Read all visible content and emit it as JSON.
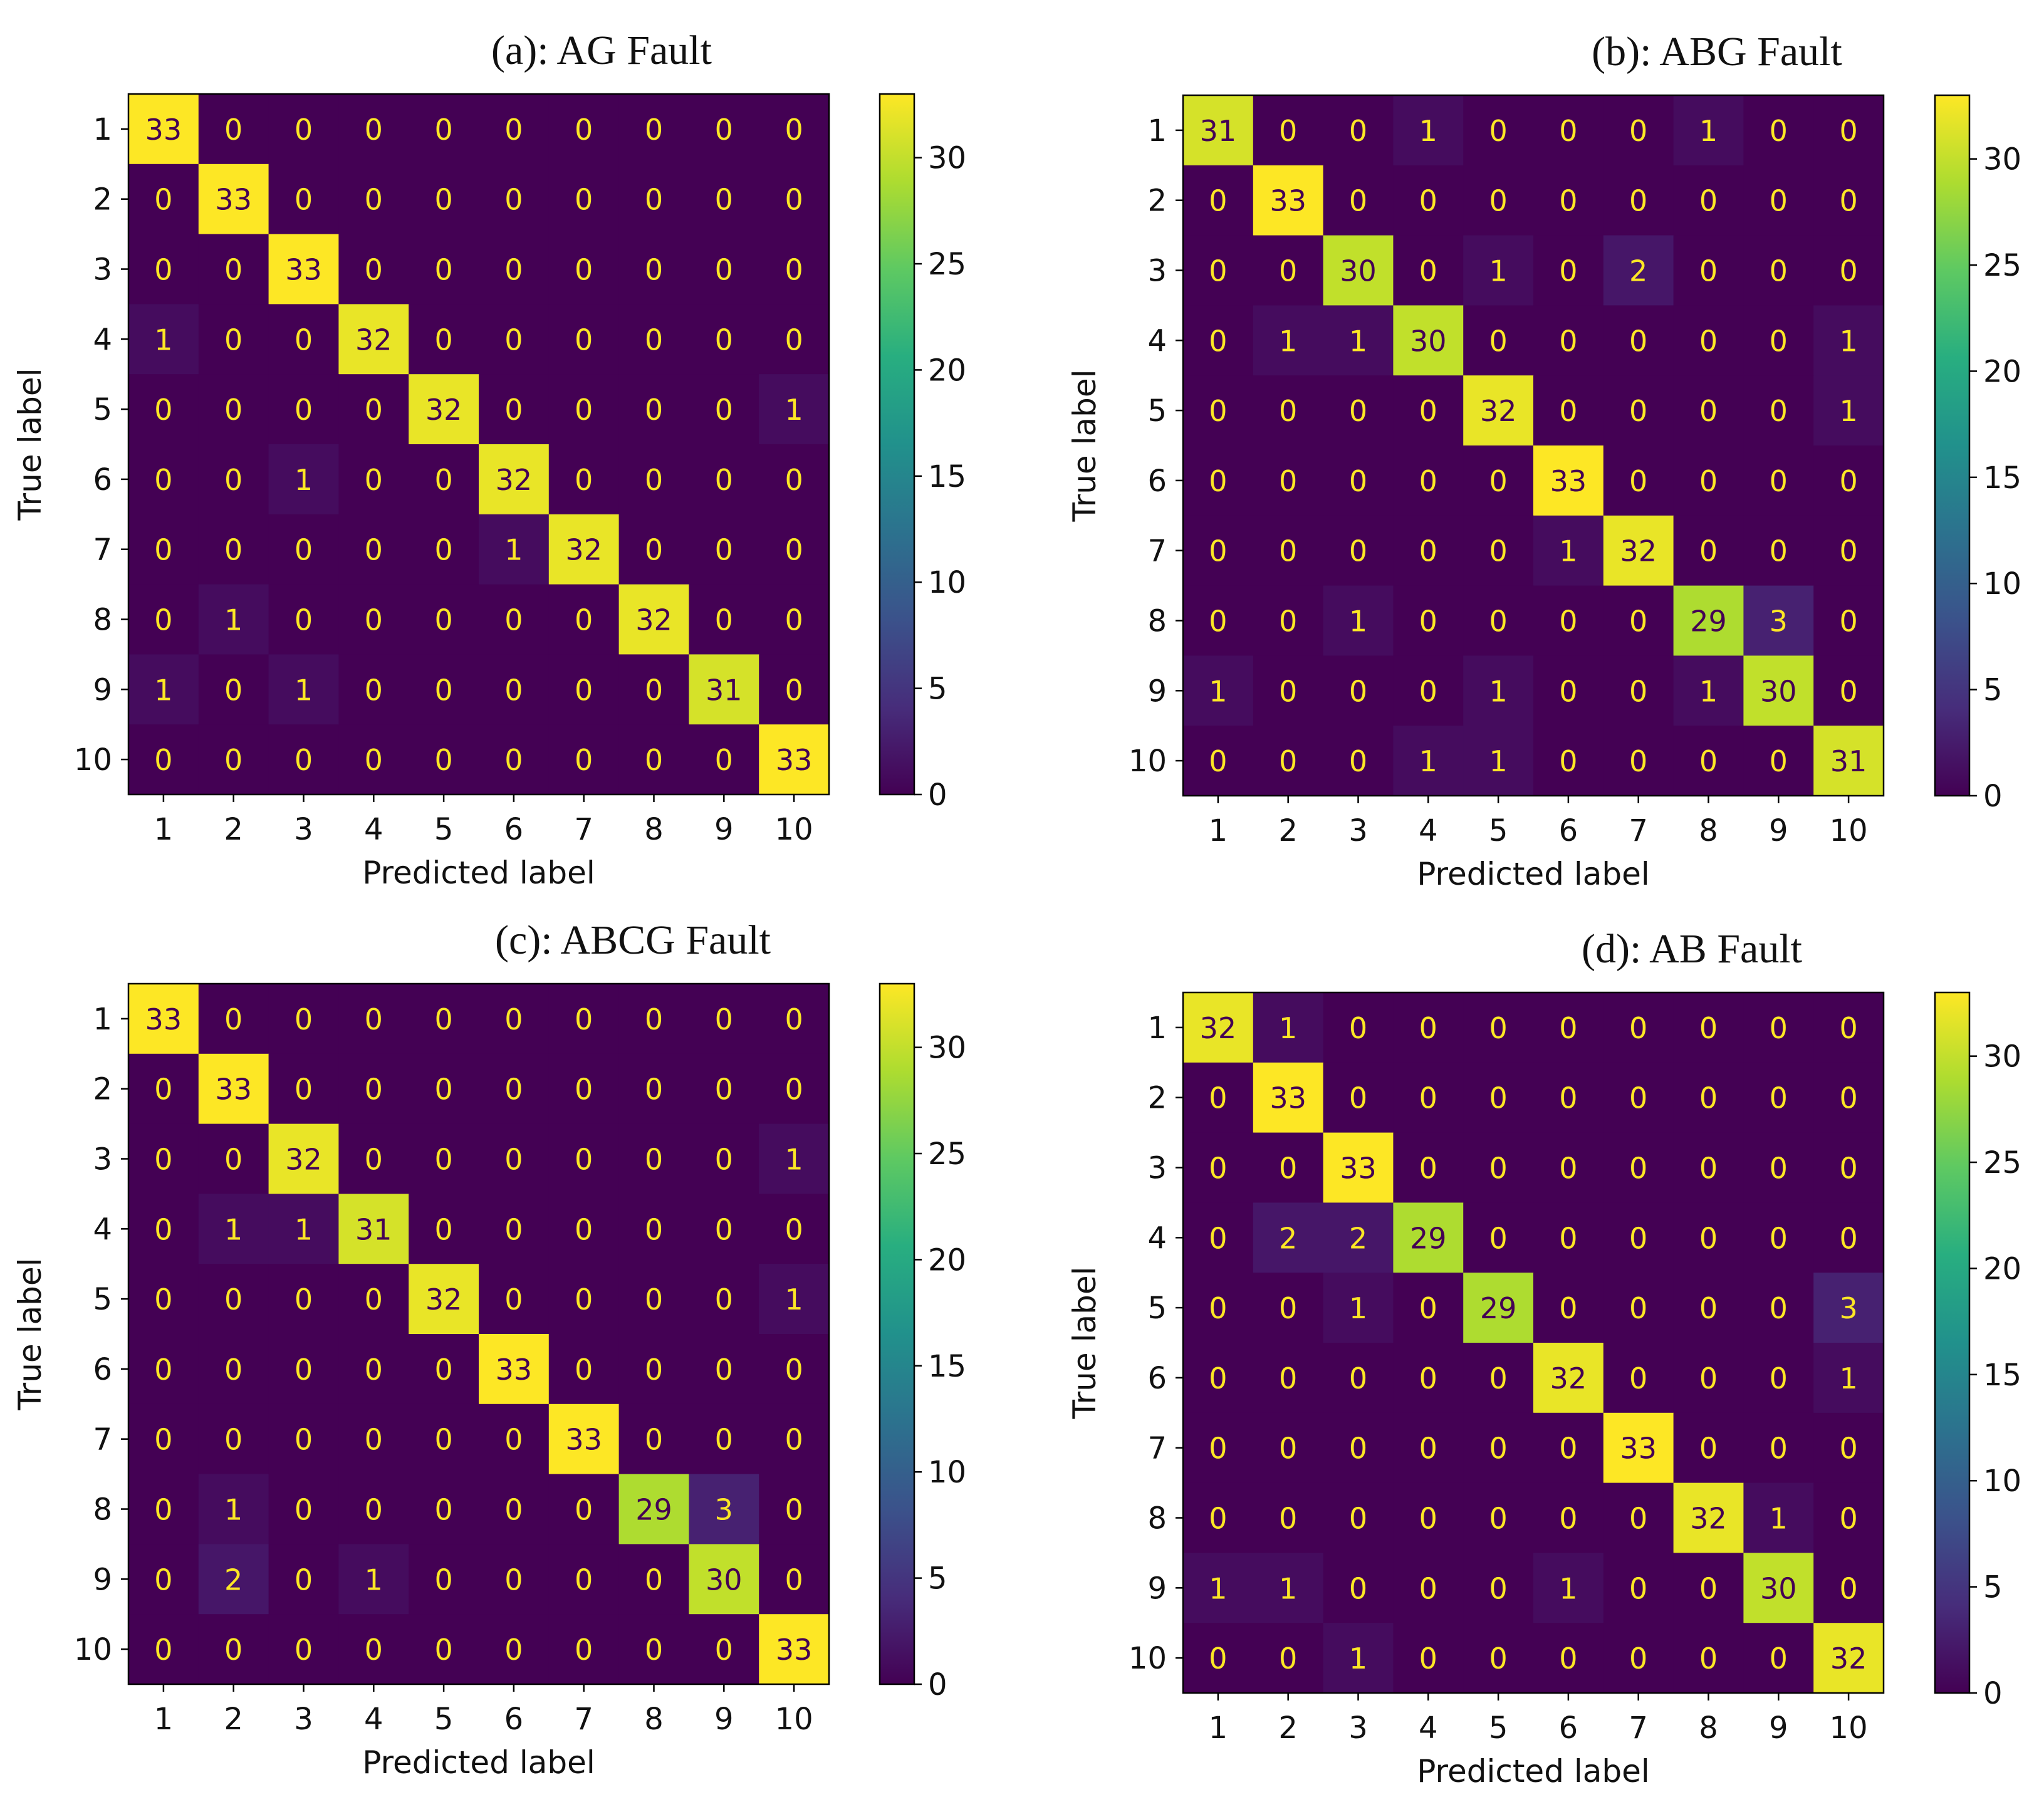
{
  "chart_data": [
    {
      "type": "heatmap",
      "title": "(a): AG Fault",
      "xlabel": "Predicted label",
      "ylabel": "True label",
      "labels": [
        "1",
        "2",
        "3",
        "4",
        "5",
        "6",
        "7",
        "8",
        "9",
        "10"
      ],
      "colorbar": {
        "min": 0,
        "max": 33,
        "ticks": [
          0,
          5,
          10,
          15,
          20,
          25,
          30
        ],
        "colormap": "viridis"
      },
      "matrix": [
        [
          33,
          0,
          0,
          0,
          0,
          0,
          0,
          0,
          0,
          0
        ],
        [
          0,
          33,
          0,
          0,
          0,
          0,
          0,
          0,
          0,
          0
        ],
        [
          0,
          0,
          33,
          0,
          0,
          0,
          0,
          0,
          0,
          0
        ],
        [
          1,
          0,
          0,
          32,
          0,
          0,
          0,
          0,
          0,
          0
        ],
        [
          0,
          0,
          0,
          0,
          32,
          0,
          0,
          0,
          0,
          1
        ],
        [
          0,
          0,
          1,
          0,
          0,
          32,
          0,
          0,
          0,
          0
        ],
        [
          0,
          0,
          0,
          0,
          0,
          1,
          32,
          0,
          0,
          0
        ],
        [
          0,
          1,
          0,
          0,
          0,
          0,
          0,
          32,
          0,
          0
        ],
        [
          1,
          0,
          1,
          0,
          0,
          0,
          0,
          0,
          31,
          0
        ],
        [
          0,
          0,
          0,
          0,
          0,
          0,
          0,
          0,
          0,
          33
        ]
      ]
    },
    {
      "type": "heatmap",
      "title": "(b): ABG Fault",
      "xlabel": "Predicted label",
      "ylabel": "True label",
      "labels": [
        "1",
        "2",
        "3",
        "4",
        "5",
        "6",
        "7",
        "8",
        "9",
        "10"
      ],
      "colorbar": {
        "min": 0,
        "max": 33,
        "ticks": [
          0,
          5,
          10,
          15,
          20,
          25,
          30
        ],
        "colormap": "viridis"
      },
      "matrix": [
        [
          31,
          0,
          0,
          1,
          0,
          0,
          0,
          1,
          0,
          0
        ],
        [
          0,
          33,
          0,
          0,
          0,
          0,
          0,
          0,
          0,
          0
        ],
        [
          0,
          0,
          30,
          0,
          1,
          0,
          2,
          0,
          0,
          0
        ],
        [
          0,
          1,
          1,
          30,
          0,
          0,
          0,
          0,
          0,
          1
        ],
        [
          0,
          0,
          0,
          0,
          32,
          0,
          0,
          0,
          0,
          1
        ],
        [
          0,
          0,
          0,
          0,
          0,
          33,
          0,
          0,
          0,
          0
        ],
        [
          0,
          0,
          0,
          0,
          0,
          1,
          32,
          0,
          0,
          0
        ],
        [
          0,
          0,
          1,
          0,
          0,
          0,
          0,
          29,
          3,
          0
        ],
        [
          1,
          0,
          0,
          0,
          1,
          0,
          0,
          1,
          30,
          0
        ],
        [
          0,
          0,
          0,
          1,
          1,
          0,
          0,
          0,
          0,
          31
        ]
      ]
    },
    {
      "type": "heatmap",
      "title": "(c): ABCG Fault",
      "xlabel": "Predicted label",
      "ylabel": "True label",
      "labels": [
        "1",
        "2",
        "3",
        "4",
        "5",
        "6",
        "7",
        "8",
        "9",
        "10"
      ],
      "colorbar": {
        "min": 0,
        "max": 33,
        "ticks": [
          0,
          5,
          10,
          15,
          20,
          25,
          30
        ],
        "colormap": "viridis"
      },
      "matrix": [
        [
          33,
          0,
          0,
          0,
          0,
          0,
          0,
          0,
          0,
          0
        ],
        [
          0,
          33,
          0,
          0,
          0,
          0,
          0,
          0,
          0,
          0
        ],
        [
          0,
          0,
          32,
          0,
          0,
          0,
          0,
          0,
          0,
          1
        ],
        [
          0,
          1,
          1,
          31,
          0,
          0,
          0,
          0,
          0,
          0
        ],
        [
          0,
          0,
          0,
          0,
          32,
          0,
          0,
          0,
          0,
          1
        ],
        [
          0,
          0,
          0,
          0,
          0,
          33,
          0,
          0,
          0,
          0
        ],
        [
          0,
          0,
          0,
          0,
          0,
          0,
          33,
          0,
          0,
          0
        ],
        [
          0,
          1,
          0,
          0,
          0,
          0,
          0,
          29,
          3,
          0
        ],
        [
          0,
          2,
          0,
          1,
          0,
          0,
          0,
          0,
          30,
          0
        ],
        [
          0,
          0,
          0,
          0,
          0,
          0,
          0,
          0,
          0,
          33
        ]
      ]
    },
    {
      "type": "heatmap",
      "title": "(d): AB Fault",
      "xlabel": "Predicted label",
      "ylabel": "True label",
      "labels": [
        "1",
        "2",
        "3",
        "4",
        "5",
        "6",
        "7",
        "8",
        "9",
        "10"
      ],
      "colorbar": {
        "min": 0,
        "max": 33,
        "ticks": [
          0,
          5,
          10,
          15,
          20,
          25,
          30
        ],
        "colormap": "viridis"
      },
      "matrix": [
        [
          32,
          1,
          0,
          0,
          0,
          0,
          0,
          0,
          0,
          0
        ],
        [
          0,
          33,
          0,
          0,
          0,
          0,
          0,
          0,
          0,
          0
        ],
        [
          0,
          0,
          33,
          0,
          0,
          0,
          0,
          0,
          0,
          0
        ],
        [
          0,
          2,
          2,
          29,
          0,
          0,
          0,
          0,
          0,
          0
        ],
        [
          0,
          0,
          1,
          0,
          29,
          0,
          0,
          0,
          0,
          3
        ],
        [
          0,
          0,
          0,
          0,
          0,
          32,
          0,
          0,
          0,
          1
        ],
        [
          0,
          0,
          0,
          0,
          0,
          0,
          33,
          0,
          0,
          0
        ],
        [
          0,
          0,
          0,
          0,
          0,
          0,
          0,
          32,
          1,
          0
        ],
        [
          1,
          1,
          0,
          0,
          0,
          1,
          0,
          0,
          30,
          0
        ],
        [
          0,
          0,
          1,
          0,
          0,
          0,
          0,
          0,
          0,
          32
        ]
      ]
    }
  ]
}
